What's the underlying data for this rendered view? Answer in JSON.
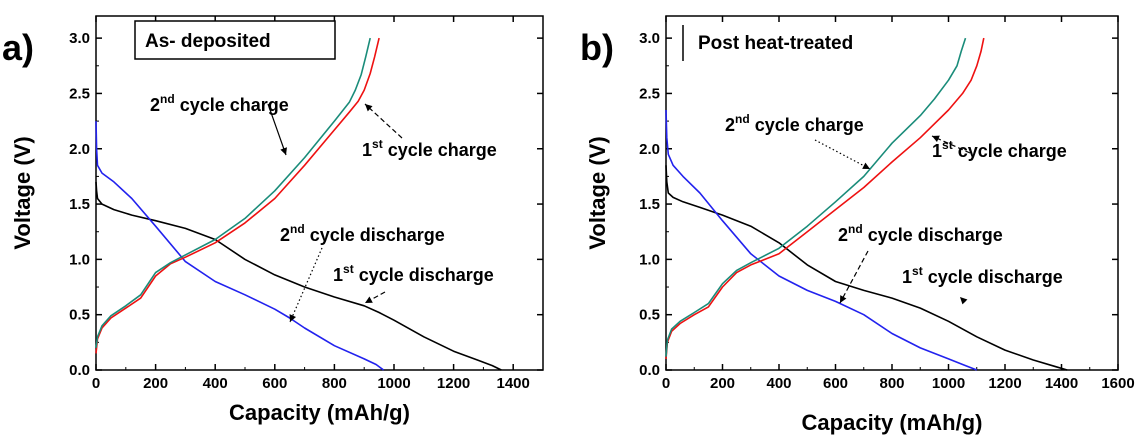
{
  "chart_data": [
    {
      "type": "line",
      "panel_label": "a)",
      "title": "As- deposited",
      "xlabel": "Capacity (mAh/g)",
      "ylabel": "Voltage (V)",
      "xlim": [
        0,
        1500
      ],
      "ylim": [
        0,
        3.2
      ],
      "xticks": [
        "0",
        "200",
        "400",
        "600",
        "800",
        "1000",
        "1200",
        "1400"
      ],
      "yticks": [
        "0.0",
        "0.5",
        "1.0",
        "1.5",
        "2.0",
        "2.5",
        "3.0"
      ],
      "grid": false,
      "series": [
        {
          "name": "1st cycle discharge",
          "color": "#000000",
          "x": [
            0,
            2,
            5,
            20,
            60,
            120,
            200,
            300,
            400,
            500,
            600,
            700,
            800,
            900,
            950,
            1000,
            1100,
            1200,
            1280,
            1330,
            1360
          ],
          "y": [
            1.7,
            1.62,
            1.55,
            1.5,
            1.45,
            1.4,
            1.35,
            1.28,
            1.18,
            1.0,
            0.86,
            0.75,
            0.66,
            0.58,
            0.52,
            0.45,
            0.3,
            0.17,
            0.09,
            0.04,
            0.0
          ]
        },
        {
          "name": "2nd cycle discharge",
          "color": "#2222ee",
          "x": [
            0,
            2,
            5,
            20,
            60,
            120,
            200,
            300,
            400,
            500,
            600,
            650,
            700,
            800,
            900,
            940,
            965
          ],
          "y": [
            2.25,
            2.0,
            1.85,
            1.78,
            1.7,
            1.55,
            1.3,
            0.98,
            0.8,
            0.68,
            0.55,
            0.47,
            0.38,
            0.22,
            0.1,
            0.05,
            0.0
          ]
        },
        {
          "name": "1st cycle charge",
          "color": "#ee1111",
          "x": [
            0,
            5,
            20,
            50,
            100,
            150,
            200,
            250,
            300,
            400,
            500,
            600,
            700,
            800,
            850,
            880,
            900,
            920,
            935,
            950
          ],
          "y": [
            0.15,
            0.28,
            0.38,
            0.47,
            0.56,
            0.65,
            0.85,
            0.96,
            1.02,
            1.15,
            1.33,
            1.55,
            1.85,
            2.17,
            2.33,
            2.43,
            2.53,
            2.68,
            2.83,
            3.0
          ]
        },
        {
          "name": "2nd cycle charge",
          "color": "#1a8c7a",
          "x": [
            0,
            5,
            20,
            50,
            100,
            150,
            200,
            250,
            300,
            400,
            500,
            600,
            700,
            800,
            850,
            870,
            890,
            905,
            920
          ],
          "y": [
            0.2,
            0.3,
            0.4,
            0.49,
            0.58,
            0.68,
            0.88,
            0.97,
            1.04,
            1.18,
            1.37,
            1.62,
            1.92,
            2.25,
            2.42,
            2.53,
            2.67,
            2.83,
            3.0
          ]
        }
      ],
      "annotations": [
        {
          "text": "2",
          "sup": "nd",
          "rest": " cycle charge",
          "x": 270,
          "y": 2.48
        },
        {
          "text": "1",
          "sup": "st",
          "rest": " cycle charge",
          "x": 890,
          "y": 1.95
        },
        {
          "text": "2",
          "sup": "nd",
          "rest": " cycle discharge",
          "x": 830,
          "y": 1.1
        },
        {
          "text": "1",
          "sup": "st",
          "rest": " cycle discharge",
          "x": 1000,
          "y": 0.8
        }
      ]
    },
    {
      "type": "line",
      "panel_label": "b)",
      "title": "Post heat-treated",
      "xlabel": "Capacity (mAh/g)",
      "ylabel": "Voltage (V)",
      "xlim": [
        0,
        1600
      ],
      "ylim": [
        0,
        3.2
      ],
      "xticks": [
        "0",
        "200",
        "400",
        "600",
        "800",
        "1000",
        "1200",
        "1400",
        "1600"
      ],
      "yticks": [
        "0.0",
        "0.5",
        "1.0",
        "1.5",
        "2.0",
        "2.5",
        "3.0"
      ],
      "grid": false,
      "series": [
        {
          "name": "1st cycle discharge",
          "color": "#000000",
          "x": [
            0,
            3,
            8,
            25,
            60,
            120,
            200,
            300,
            400,
            500,
            600,
            700,
            800,
            900,
            1000,
            1100,
            1200,
            1300,
            1380,
            1420
          ],
          "y": [
            1.85,
            1.7,
            1.6,
            1.56,
            1.52,
            1.47,
            1.4,
            1.3,
            1.15,
            0.95,
            0.8,
            0.72,
            0.65,
            0.56,
            0.44,
            0.3,
            0.18,
            0.09,
            0.03,
            0.0
          ]
        },
        {
          "name": "2nd cycle discharge",
          "color": "#2222ee",
          "x": [
            0,
            3,
            8,
            25,
            60,
            120,
            200,
            300,
            400,
            500,
            600,
            700,
            800,
            900,
            1000,
            1060,
            1100
          ],
          "y": [
            2.35,
            2.1,
            1.95,
            1.85,
            1.75,
            1.6,
            1.35,
            1.05,
            0.85,
            0.72,
            0.62,
            0.5,
            0.33,
            0.2,
            0.1,
            0.04,
            0.0
          ]
        },
        {
          "name": "1st cycle charge",
          "color": "#ee1111",
          "x": [
            0,
            5,
            20,
            50,
            100,
            150,
            200,
            250,
            300,
            400,
            500,
            600,
            700,
            800,
            900,
            1000,
            1050,
            1080,
            1100,
            1115,
            1125
          ],
          "y": [
            0.1,
            0.25,
            0.35,
            0.42,
            0.5,
            0.57,
            0.75,
            0.88,
            0.95,
            1.05,
            1.25,
            1.45,
            1.65,
            1.88,
            2.1,
            2.35,
            2.5,
            2.62,
            2.75,
            2.88,
            3.0
          ]
        },
        {
          "name": "2nd cycle charge",
          "color": "#1a8c7a",
          "x": [
            0,
            5,
            20,
            50,
            100,
            150,
            200,
            250,
            300,
            400,
            500,
            600,
            700,
            800,
            900,
            950,
            1000,
            1030,
            1045,
            1060
          ],
          "y": [
            0.12,
            0.27,
            0.37,
            0.44,
            0.52,
            0.6,
            0.78,
            0.9,
            0.97,
            1.1,
            1.3,
            1.52,
            1.75,
            2.05,
            2.3,
            2.45,
            2.62,
            2.75,
            2.88,
            3.0
          ]
        }
      ],
      "annotations": [
        {
          "text": "2",
          "sup": "nd",
          "rest": " cycle charge",
          "x": 380,
          "y": 2.24
        },
        {
          "text": "1",
          "sup": "st",
          "rest": " cycle charge",
          "x": 1000,
          "y": 2.0
        },
        {
          "text": "2",
          "sup": "nd",
          "rest": " cycle discharge",
          "x": 600,
          "y": 1.3
        },
        {
          "text": "1",
          "sup": "st",
          "rest": " cycle discharge",
          "x": 900,
          "y": 0.85
        }
      ]
    }
  ]
}
